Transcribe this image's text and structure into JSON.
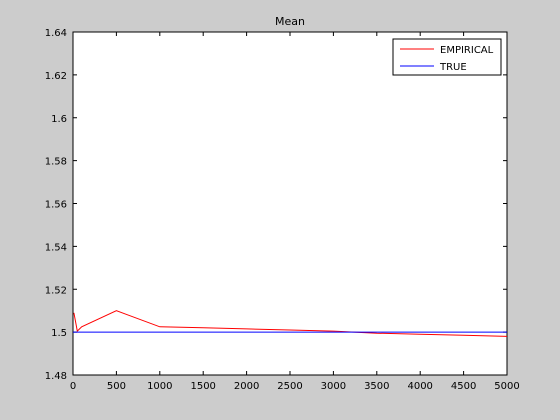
{
  "chart_data": {
    "type": "line",
    "title": "Mean",
    "xlabel": "",
    "ylabel": "",
    "xlim": [
      0,
      5000
    ],
    "ylim": [
      1.48,
      1.64
    ],
    "x_ticks": [
      0,
      500,
      1000,
      1500,
      2000,
      2500,
      3000,
      3500,
      4000,
      4500,
      5000
    ],
    "y_ticks": [
      1.48,
      1.5,
      1.52,
      1.54,
      1.56,
      1.58,
      1.6,
      1.62,
      1.64
    ],
    "x_tick_labels": [
      "0",
      "500",
      "1000",
      "1500",
      "2000",
      "2500",
      "3000",
      "3500",
      "4000",
      "4500",
      "5000"
    ],
    "y_tick_labels": [
      "1.48",
      "1.5",
      "1.52",
      "1.54",
      "1.56",
      "1.58",
      "1.6",
      "1.62",
      "1.64"
    ],
    "grid": false,
    "legend_position": "top-right",
    "series": [
      {
        "name": "EMPIRICAL",
        "color": "#ff0000",
        "x": [
          10,
          50,
          100,
          500,
          1000,
          1500,
          2000,
          2500,
          3000,
          3500,
          4000,
          4500,
          5000
        ],
        "y": [
          1.509,
          1.5005,
          1.5025,
          1.51,
          1.5025,
          1.502,
          1.5015,
          1.501,
          1.5005,
          1.4995,
          1.499,
          1.4985,
          1.498
        ]
      },
      {
        "name": "TRUE",
        "color": "#0000ff",
        "x": [
          0,
          5000
        ],
        "y": [
          1.5,
          1.5
        ]
      }
    ]
  }
}
